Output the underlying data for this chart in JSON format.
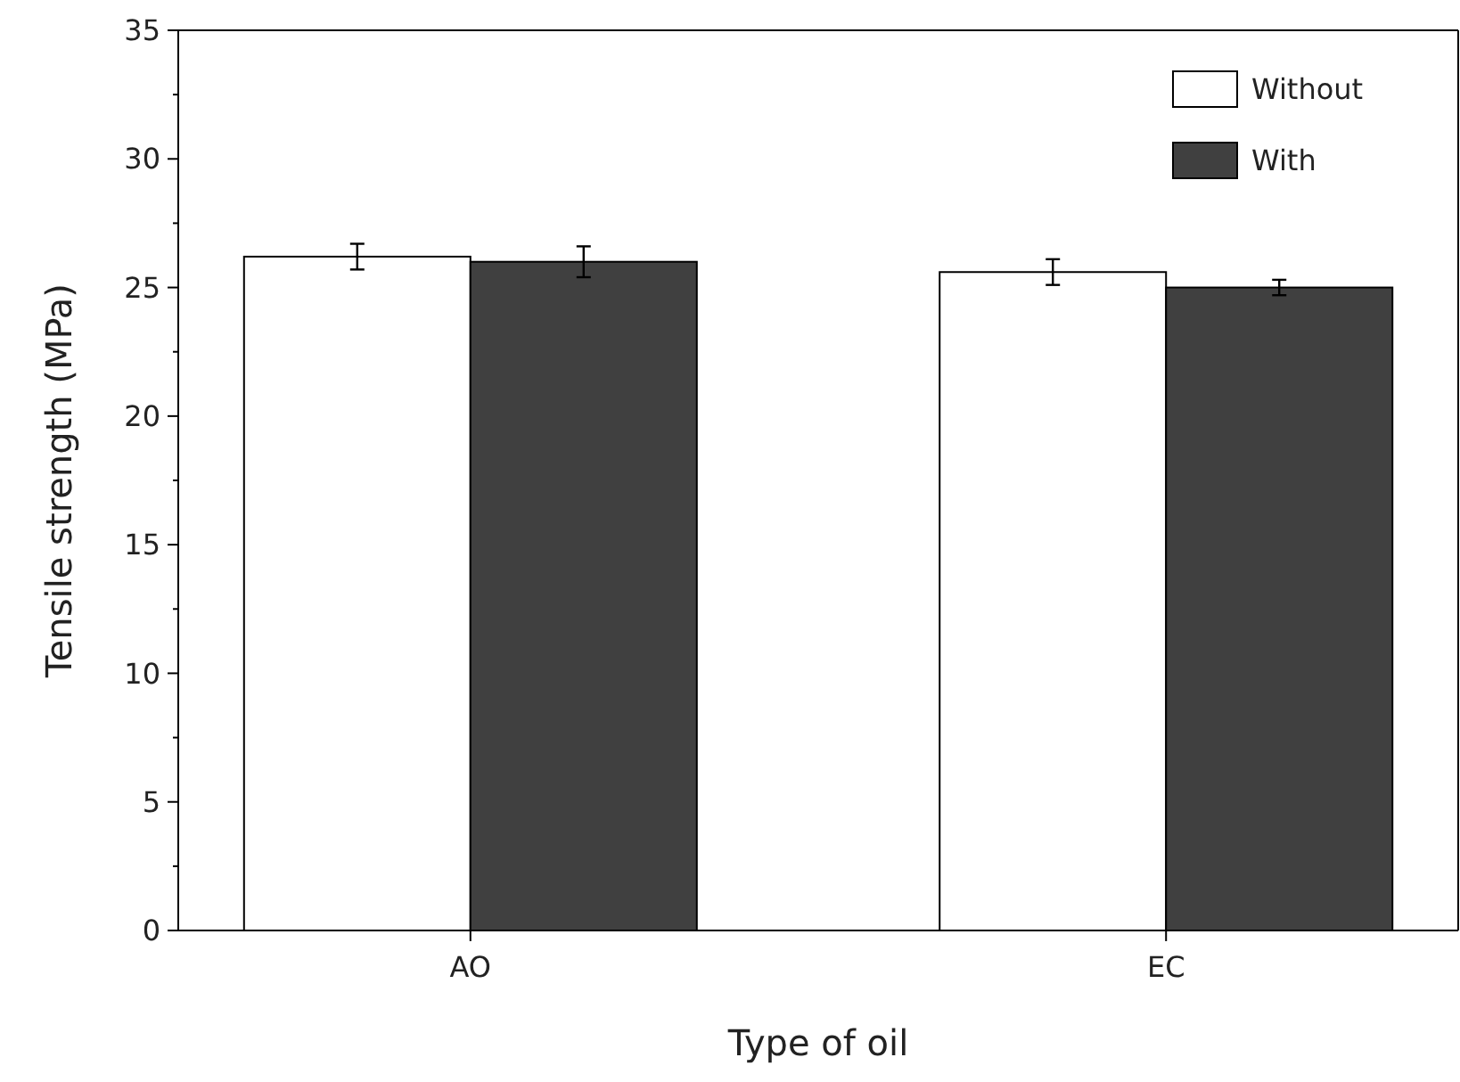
{
  "chart_data": {
    "type": "bar",
    "xlabel": "Type of oil",
    "ylabel": "Tensile strength (MPa)",
    "categories": [
      "AO",
      "EC"
    ],
    "series": [
      {
        "name": "Without",
        "color": "#ffffff",
        "values": [
          26.2,
          25.6
        ],
        "errors": [
          0.5,
          0.5
        ]
      },
      {
        "name": "With",
        "color": "#404040",
        "values": [
          26.0,
          25.0
        ],
        "errors": [
          0.6,
          0.3
        ]
      }
    ],
    "ylim": [
      0,
      35
    ],
    "yticks": [
      0,
      {
        "value": 2.5,
        "label": null
      },
      5,
      {
        "value": 7.5,
        "label": null
      },
      10,
      {
        "value": 12.5,
        "label": null
      },
      15,
      {
        "value": 17.5,
        "label": null
      },
      20,
      {
        "value": 22.5,
        "label": null
      },
      25,
      {
        "value": 27.5,
        "label": null
      },
      30,
      {
        "value": 32.5,
        "label": null
      },
      35
    ],
    "grid": false,
    "legend": "top right"
  }
}
